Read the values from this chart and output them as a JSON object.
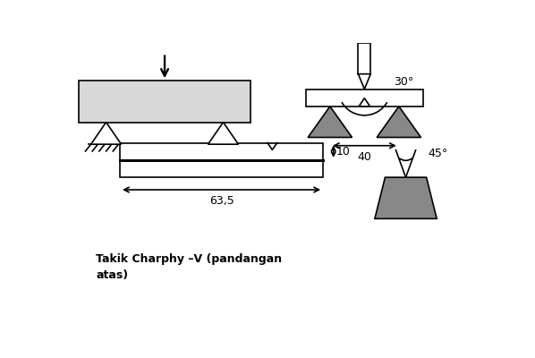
{
  "bg_color": "#ffffff",
  "line_color": "#000000",
  "gray_fill": "#888888",
  "light_gray_fill": "#d8d8d8",
  "title_text": "Takik Charphy –V (pandangan\natas)",
  "title_fontsize": 9,
  "dim_40": "40",
  "dim_635": "63,5",
  "dim_10": "10",
  "angle_30": "30°",
  "angle_45": "45°"
}
